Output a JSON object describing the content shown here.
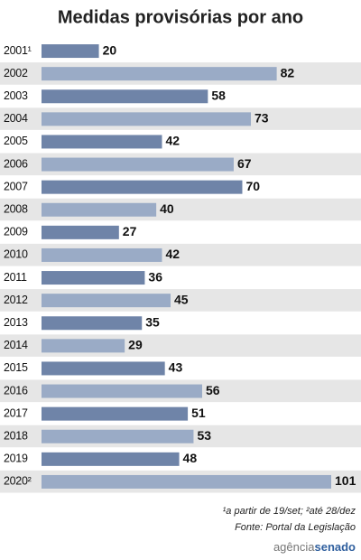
{
  "chart_data": {
    "type": "bar",
    "orientation": "horizontal",
    "title": "Medidas provisórias por ano",
    "categories": [
      "2001¹",
      "2002",
      "2003",
      "2004",
      "2005",
      "2006",
      "2007",
      "2008",
      "2009",
      "2010",
      "2011",
      "2012",
      "2013",
      "2014",
      "2015",
      "2016",
      "2017",
      "2018",
      "2019",
      "2020²"
    ],
    "values": [
      20,
      82,
      58,
      73,
      42,
      67,
      70,
      40,
      27,
      42,
      36,
      45,
      35,
      29,
      43,
      56,
      51,
      53,
      48,
      101
    ],
    "colors": [
      "#6f84a8",
      "#9aabc6"
    ],
    "footnote": "¹a partir de 19/set; ²até 28/dez",
    "source": "Fonte: Portal da Legislação",
    "logo": [
      "agência",
      "senado"
    ]
  }
}
